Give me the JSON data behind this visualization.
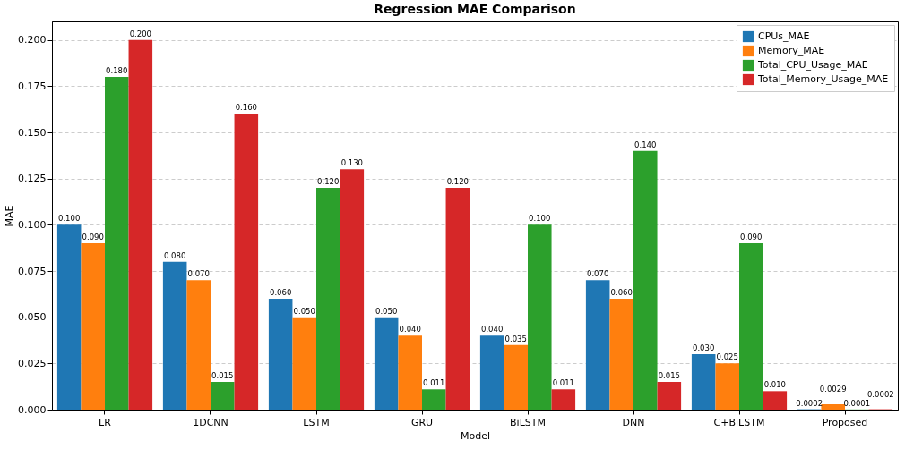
{
  "chart_data": {
    "type": "bar",
    "title": "Regression MAE Comparison",
    "xlabel": "Model",
    "ylabel": "MAE",
    "categories": [
      "LR",
      "1DCNN",
      "LSTM",
      "GRU",
      "BiLSTM",
      "DNN",
      "C+BiLSTM",
      "Proposed"
    ],
    "series": [
      {
        "name": "CPUs_MAE",
        "color": "#1f77b4",
        "values": [
          0.1,
          0.08,
          0.06,
          0.05,
          0.04,
          0.07,
          0.03,
          0.0002
        ],
        "value_labels": [
          "0.100",
          "0.080",
          "0.060",
          "0.050",
          "0.040",
          "0.070",
          "0.030",
          "0.0002"
        ]
      },
      {
        "name": "Memory_MAE",
        "color": "#ff7f0e",
        "values": [
          0.09,
          0.07,
          0.05,
          0.04,
          0.035,
          0.06,
          0.025,
          0.0029
        ],
        "value_labels": [
          "0.090",
          "0.070",
          "0.050",
          "0.040",
          "0.035",
          "0.060",
          "0.025",
          "0.0029"
        ]
      },
      {
        "name": "Total_CPU_Usage_MAE",
        "color": "#2ca02c",
        "values": [
          0.18,
          0.015,
          0.12,
          0.011,
          0.1,
          0.14,
          0.09,
          0.0001
        ],
        "value_labels": [
          "0.180",
          "0.015",
          "0.120",
          "0.011",
          "0.100",
          "0.140",
          "0.090",
          "0.0001"
        ]
      },
      {
        "name": "Total_Memory_Usage_MAE",
        "color": "#d62728",
        "values": [
          0.2,
          0.16,
          0.13,
          0.12,
          0.011,
          0.015,
          0.01,
          0.0002
        ],
        "value_labels": [
          "0.200",
          "0.160",
          "0.130",
          "0.120",
          "0.011",
          "0.015",
          "0.010",
          "0.0002"
        ]
      }
    ],
    "ylim": [
      0,
      0.21
    ],
    "yticks": [
      {
        "value": 0,
        "label": "0.000"
      },
      {
        "value": 0.025,
        "label": "0.025"
      },
      {
        "value": 0.05,
        "label": "0.050"
      },
      {
        "value": 0.075,
        "label": "0.075"
      },
      {
        "value": 0.1,
        "label": "0.100"
      },
      {
        "value": 0.125,
        "label": "0.125"
      },
      {
        "value": 0.15,
        "label": "0.150"
      },
      {
        "value": 0.175,
        "label": "0.175"
      },
      {
        "value": 0.2,
        "label": "0.200"
      }
    ],
    "grid": "y",
    "legend": "top right"
  }
}
